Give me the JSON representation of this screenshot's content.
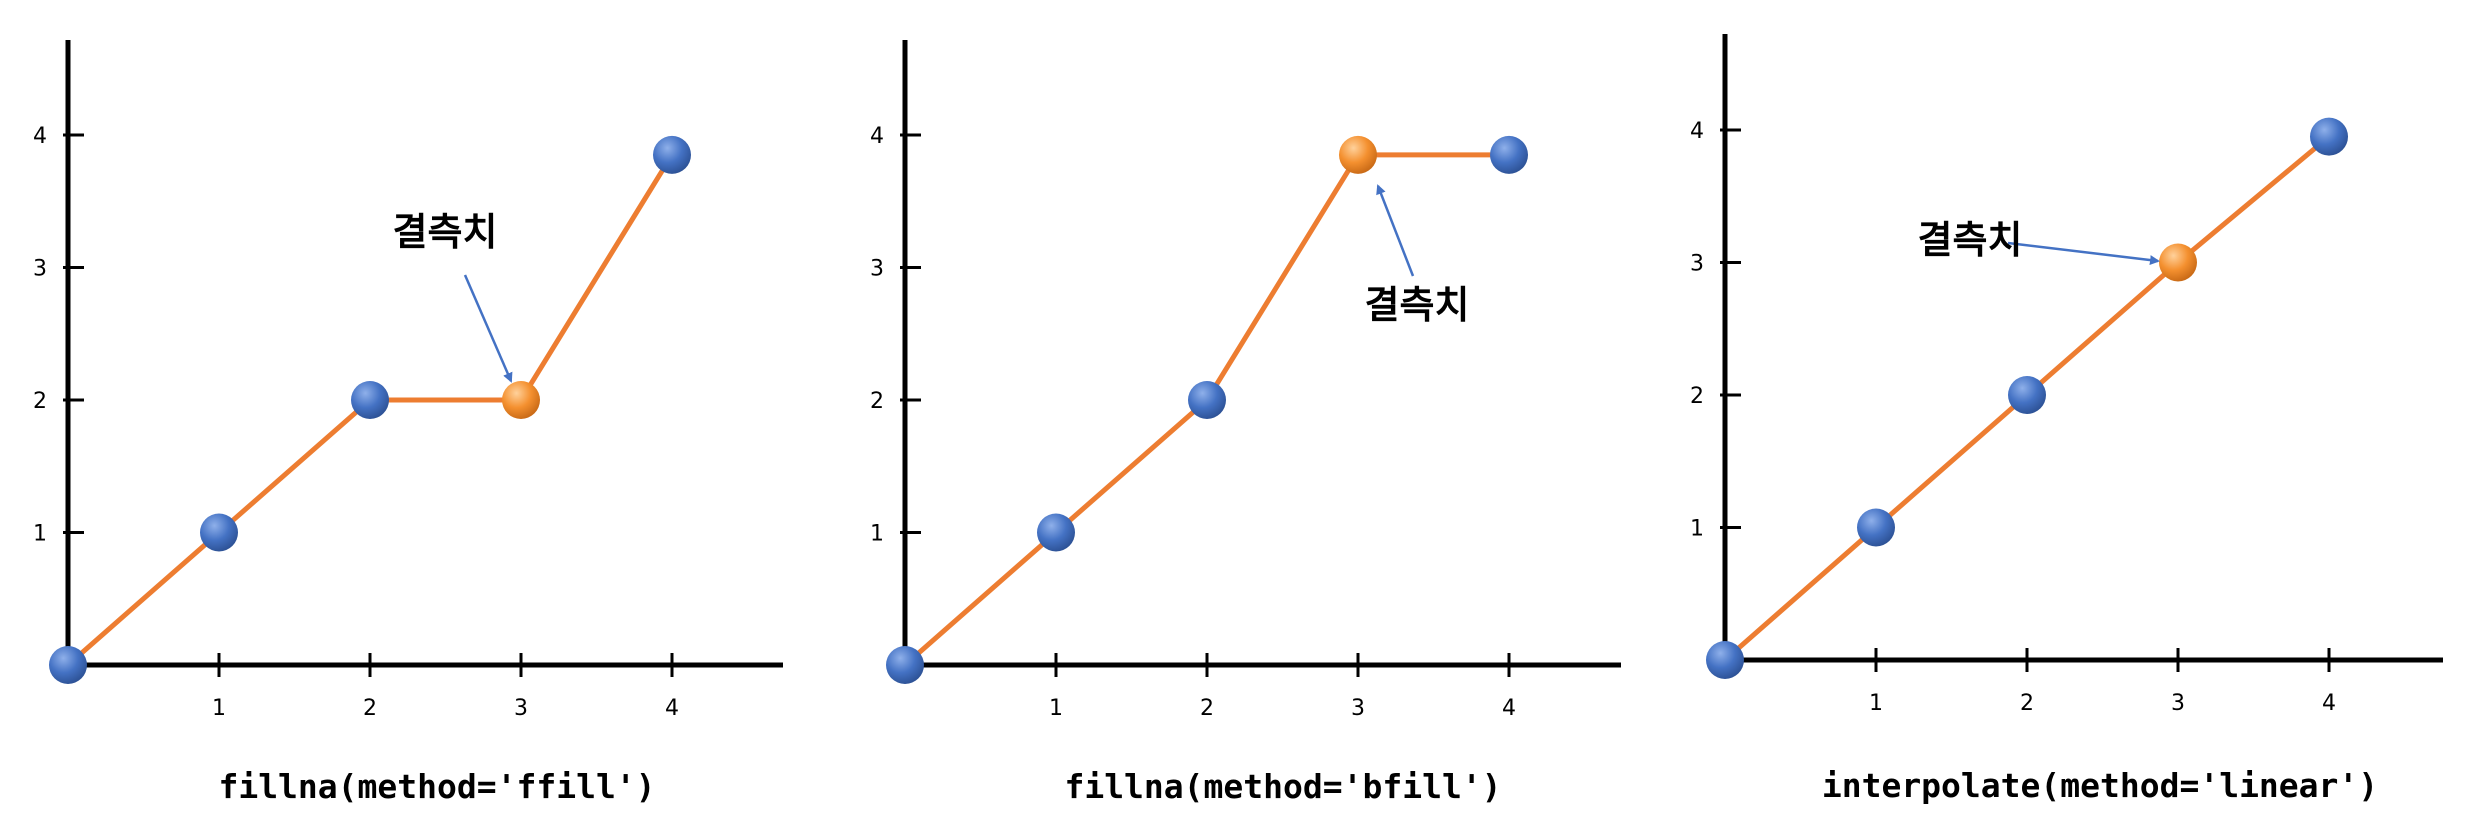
{
  "colors": {
    "axis": "#000000",
    "line": "#ed7d31",
    "point": "#4472c4",
    "missing_point": "#f4902f",
    "arrow": "#4472c4"
  },
  "chart_data": [
    {
      "type": "line",
      "title": "",
      "caption": "fillna(method='ffill')",
      "x_ticks": [
        "1",
        "2",
        "3",
        "4"
      ],
      "y_ticks": [
        "1",
        "2",
        "3",
        "4"
      ],
      "xlim": [
        0,
        4.7
      ],
      "ylim": [
        0,
        4.8
      ],
      "x": [
        0,
        1,
        2,
        3,
        4
      ],
      "values": [
        0,
        1,
        2,
        2,
        3.85
      ],
      "missing_index": 3,
      "annotation": {
        "text": "결측치",
        "points_to_index": 3
      }
    },
    {
      "type": "line",
      "title": "",
      "caption": "fillna(method='bfill')",
      "x_ticks": [
        "1",
        "2",
        "3",
        "4"
      ],
      "y_ticks": [
        "1",
        "2",
        "3",
        "4"
      ],
      "xlim": [
        0,
        4.7
      ],
      "ylim": [
        0,
        4.8
      ],
      "x": [
        0,
        1,
        2,
        3,
        4
      ],
      "values": [
        0,
        1,
        2,
        3.85,
        3.85
      ],
      "missing_index": 3,
      "annotation": {
        "text": "결측치",
        "points_to_index": 3
      }
    },
    {
      "type": "line",
      "title": "",
      "caption": "interpolate(method='linear')",
      "x_ticks": [
        "1",
        "2",
        "3",
        "4"
      ],
      "y_ticks": [
        "1",
        "2",
        "3",
        "4"
      ],
      "xlim": [
        0,
        4.7
      ],
      "ylim": [
        0,
        4.8
      ],
      "x": [
        0,
        1,
        2,
        3,
        4
      ],
      "values": [
        0,
        1,
        2,
        3,
        3.95
      ],
      "missing_index": 3,
      "annotation": {
        "text": "결측치",
        "points_to_index": 3
      }
    }
  ]
}
